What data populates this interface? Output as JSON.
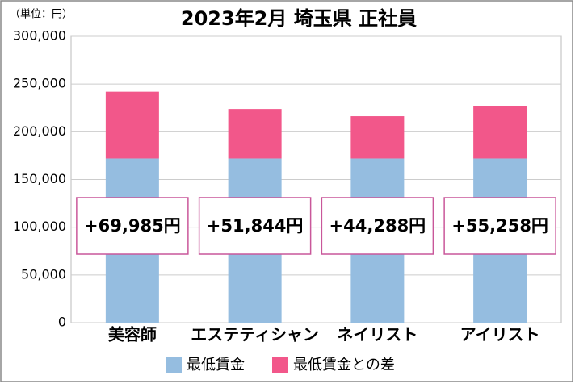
{
  "chart_data": {
    "type": "stacked-bar",
    "title": "2023年2月 埼玉県 正社員",
    "unit_label": "（単位：円）",
    "categories": [
      "美容師",
      "エステティシャン",
      "ネイリスト",
      "アイリスト"
    ],
    "series": [
      {
        "name": "最低賃金",
        "color": "#95bde0",
        "values": [
          172000,
          172000,
          172000,
          172000
        ]
      },
      {
        "name": "最低賃金との差",
        "color": "#f2578a",
        "values": [
          69985,
          51844,
          44288,
          55258
        ],
        "value_labels": [
          "+69,985円",
          "+51,844円",
          "+44,288円",
          "+55,258円"
        ]
      }
    ],
    "ylim": [
      0,
      300000
    ],
    "yticks": [
      0,
      {
        "value": 50000,
        "label": "50,000"
      },
      {
        "value": 100000,
        "label": "100,000"
      },
      {
        "value": 150000,
        "label": "150,000"
      },
      {
        "value": 200000,
        "label": "200,000"
      },
      {
        "value": 250000,
        "label": "250,000"
      },
      {
        "value": 300000,
        "label": "300,000"
      }
    ],
    "grid": true,
    "legend": "bottom"
  }
}
